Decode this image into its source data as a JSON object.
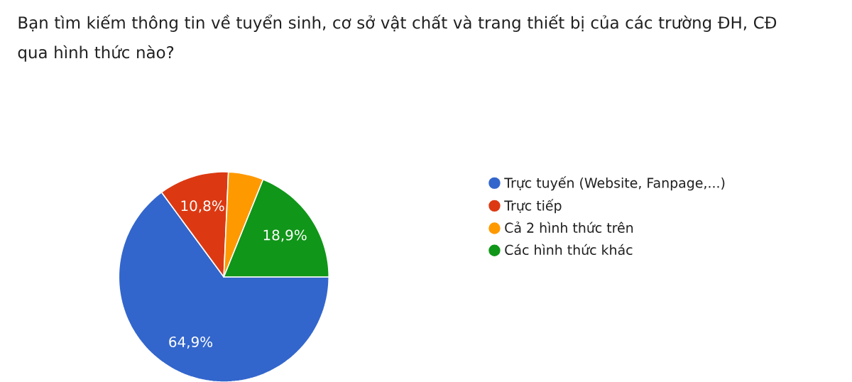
{
  "chart_data": {
    "type": "pie",
    "title": "Bạn tìm kiếm thông tin về tuyển sinh, cơ sở vật chất và trang thiết bị của các trường ĐH, CĐ qua hình thức nào?",
    "categories": [
      "Trực tuyến (Website, Fanpage,...)",
      "Trực tiếp",
      "Cả 2 hình thức trên",
      "Các hình thức khác"
    ],
    "values": [
      64.9,
      10.8,
      5.4,
      18.9
    ],
    "value_labels": [
      "64,9%",
      "10,8%",
      null,
      "18,9%"
    ],
    "colors": [
      "#3366cc",
      "#dc3912",
      "#ff9900",
      "#109618"
    ],
    "legend": "right"
  }
}
